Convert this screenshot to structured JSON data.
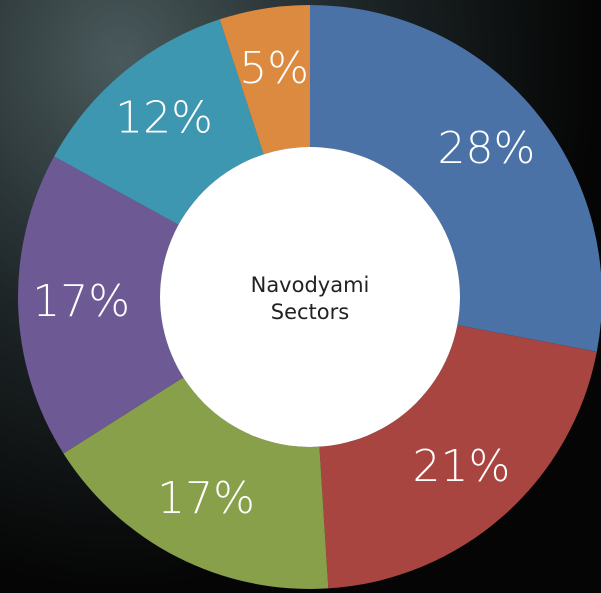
{
  "chart_data": {
    "type": "donut",
    "center_label": "Navodyami Sectors",
    "values": [
      28,
      21,
      17,
      17,
      12,
      5
    ],
    "value_labels": [
      "28%",
      "21%",
      "17%",
      "17%",
      "12%",
      "5%"
    ],
    "colors": [
      "#4a72a6",
      "#a94541",
      "#89a04b",
      "#6d5993",
      "#3e97b0",
      "#dc8a3f"
    ]
  }
}
